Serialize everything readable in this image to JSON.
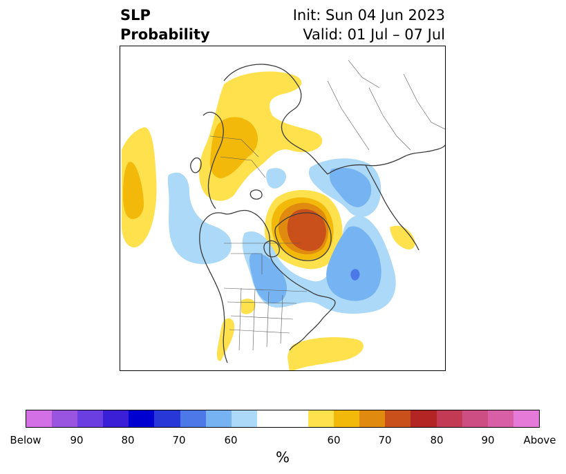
{
  "title": {
    "left_line1": "SLP",
    "left_line2": "Probability",
    "right_line1": "Init: Sun 04 Jun 2023",
    "right_line2": "Valid: 01 Jul – 07 Jul"
  },
  "map": {
    "projection": "polar stereographic (North Pole)",
    "regions": [
      {
        "category": "above",
        "level": "50-60",
        "color": "#ffe14d",
        "area": "northern Europe / Scandinavia"
      },
      {
        "category": "above",
        "level": "60-65",
        "color": "#f2b90a",
        "area": "western Russia / eastern Europe"
      },
      {
        "category": "above",
        "level": "50-65",
        "color": "#f2b90a",
        "area": "central North Pacific"
      },
      {
        "category": "above",
        "level": "50-80",
        "color": "#c9501b",
        "area": "Greenland / Canadian Arctic"
      },
      {
        "category": "above",
        "level": "50-60",
        "color": "#ffe14d",
        "area": "central Atlantic, south of Nova Scotia"
      },
      {
        "category": "above",
        "level": "50-60",
        "color": "#ffe14d",
        "area": "western United States"
      },
      {
        "category": "below",
        "level": "50-60",
        "color": "#abd9f7",
        "area": "Alaska / Gulf of Alaska"
      },
      {
        "category": "below",
        "level": "50-70",
        "color": "#4d79e8",
        "area": "North Atlantic / Hudson Bay / Labrador Sea"
      },
      {
        "category": "below",
        "level": "50-65",
        "color": "#76b3f2",
        "area": "Barents / Kara Seas"
      }
    ]
  },
  "colorbar": {
    "colors": [
      "#d470e6",
      "#9a55e0",
      "#6a3ee0",
      "#3b1fd6",
      "#0000d0",
      "#2838d8",
      "#4d79e8",
      "#76b3f2",
      "#abd9f7",
      "#ffffff",
      "#ffe14d",
      "#f2b90a",
      "#e08a10",
      "#c9501b",
      "#b32424",
      "#c23a54",
      "#cc4e82",
      "#d85ea6",
      "#e67ad8"
    ],
    "tick_labels": [
      "Below",
      "90",
      "80",
      "70",
      "60",
      "60",
      "70",
      "80",
      "90",
      "Above"
    ],
    "unit": "%"
  }
}
